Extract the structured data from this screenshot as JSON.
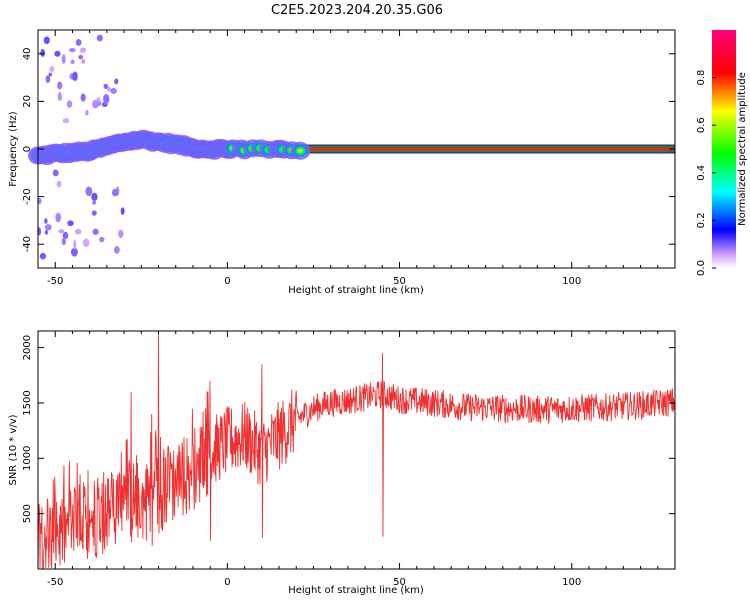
{
  "title": "C2E5.2023.204.20.35.G06",
  "colors": {
    "snr_line": "#f03030",
    "center_band": "#e8203a",
    "center_band_edge": "#00a000"
  },
  "chart_data": [
    {
      "type": "heatmap",
      "xlabel": "Height of straight line (km)",
      "ylabel": "Frequency (Hz)",
      "xlim": [
        -55,
        130
      ],
      "ylim": [
        -50,
        50
      ],
      "xticks": [
        -50,
        0,
        50,
        100
      ],
      "yticks": [
        40,
        20,
        0,
        -20,
        -40
      ],
      "colorbar": {
        "label": "Normalized spectral amplitude",
        "ticks": [
          "0.0",
          "0.2",
          "0.4",
          "0.6",
          "0.8"
        ],
        "range": [
          0,
          1
        ]
      },
      "ridge_frequency_hz": [
        [
          -55,
          -3
        ],
        [
          -50,
          -2
        ],
        [
          -45,
          -1.5
        ],
        [
          -40,
          -1
        ],
        [
          -35,
          1
        ],
        [
          -30,
          3
        ],
        [
          -25,
          4
        ],
        [
          -20,
          3
        ],
        [
          -15,
          2
        ],
        [
          -10,
          0.5
        ],
        [
          -5,
          0
        ],
        [
          0,
          0
        ],
        [
          130,
          0
        ]
      ],
      "center_line_frequency_hz": 0,
      "center_line_span_km": [
        -10,
        130
      ]
    },
    {
      "type": "line",
      "xlabel": "Height of straight line (km)",
      "ylabel": "SNR (10 * v/v)",
      "xlim": [
        -55,
        130
      ],
      "ylim": [
        0,
        2150
      ],
      "xticks": [
        -50,
        0,
        50,
        100
      ],
      "yticks": [
        500,
        1000,
        1500,
        2000
      ],
      "series": [
        {
          "trend": [
            [
              -55,
              350
            ],
            [
              -50,
              300
            ],
            [
              -45,
              380
            ],
            [
              -40,
              450
            ],
            [
              -35,
              500
            ],
            [
              -30,
              650
            ],
            [
              -25,
              600
            ],
            [
              -20,
              700
            ],
            [
              -15,
              800
            ],
            [
              -10,
              900
            ],
            [
              -5,
              1050
            ],
            [
              0,
              1150
            ],
            [
              5,
              1200
            ],
            [
              10,
              1050
            ],
            [
              15,
              1200
            ],
            [
              20,
              1350
            ],
            [
              25,
              1450
            ],
            [
              30,
              1500
            ],
            [
              35,
              1520
            ],
            [
              40,
              1550
            ],
            [
              45,
              1580
            ],
            [
              50,
              1530
            ],
            [
              60,
              1500
            ],
            [
              70,
              1460
            ],
            [
              80,
              1450
            ],
            [
              90,
              1440
            ],
            [
              100,
              1450
            ],
            [
              110,
              1460
            ],
            [
              120,
              1480
            ],
            [
              130,
              1510
            ]
          ],
          "spikes": [
            [
              -20,
              2150
            ],
            [
              -28,
              1600
            ],
            [
              -22,
              1400
            ],
            [
              10,
              1850
            ],
            [
              45,
              1950
            ],
            [
              -5,
              1700
            ]
          ]
        }
      ]
    }
  ]
}
